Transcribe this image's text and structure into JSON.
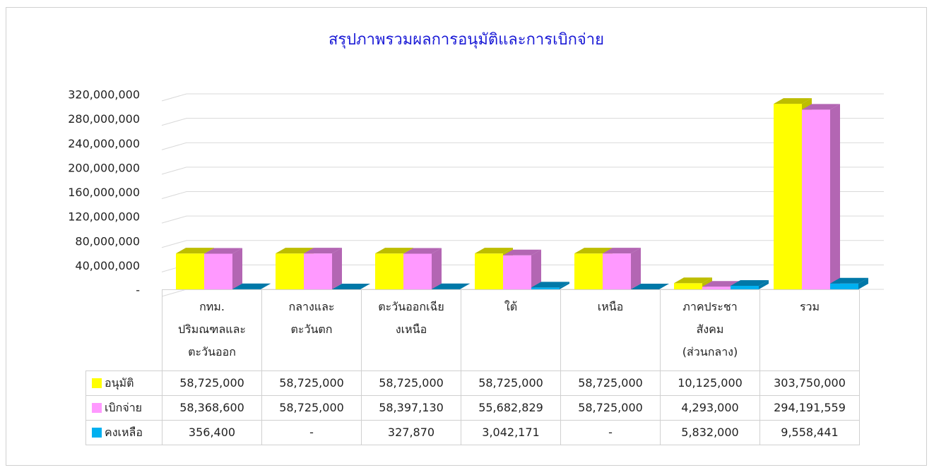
{
  "chart_data": {
    "type": "bar3d",
    "title": "สรุปภาพรวมผลการอนุมัติและการเบิกจ่าย",
    "categories": [
      "กทม.\nปริมณฑลและ\nตะวันออก",
      "กลางและ\nตะวันตก",
      "ตะวันออกเฉีย\nงเหนือ",
      "ใต้",
      "เหนือ",
      "ภาคประชา\nสังคม\n(ส่วนกลาง)",
      "รวม"
    ],
    "series": [
      {
        "name": "อนุมัติ",
        "color": "#ffff00",
        "side": "#bdbd00",
        "values": [
          58725000,
          58725000,
          58725000,
          58725000,
          58725000,
          10125000,
          303750000
        ],
        "value_labels": [
          "58,725,000",
          "58,725,000",
          "58,725,000",
          "58,725,000",
          "58,725,000",
          "10,125,000",
          "303,750,000"
        ]
      },
      {
        "name": "เบิกจ่าย",
        "color": "#ff99ff",
        "side": "#b366b3",
        "values": [
          58368600,
          58725000,
          58397130,
          55682829,
          58725000,
          4293000,
          294191559
        ],
        "value_labels": [
          "58,368,600",
          "58,725,000",
          "58,397,130",
          "55,682,829",
          "58,725,000",
          "4,293,000",
          "294,191,559"
        ]
      },
      {
        "name": "คงเหลือ",
        "color": "#00b0f0",
        "side": "#0078a8",
        "values": [
          356400,
          0,
          327870,
          3042171,
          0,
          5832000,
          9558441
        ],
        "value_labels": [
          "356,400",
          "-",
          "327,870",
          "3,042,171",
          "-",
          "5,832,000",
          "9,558,441"
        ]
      }
    ],
    "ylim": [
      0,
      320000000
    ],
    "yticks": [
      {
        "value": 0,
        "label": "-"
      },
      {
        "value": 40000000,
        "label": "40,000,000"
      },
      {
        "value": 80000000,
        "label": "80,000,000"
      },
      {
        "value": 120000000,
        "label": "120,000,000"
      },
      {
        "value": 160000000,
        "label": "160,000,000"
      },
      {
        "value": 200000000,
        "label": "200,000,000"
      },
      {
        "value": 240000000,
        "label": "240,000,000"
      },
      {
        "value": 280000000,
        "label": "280,000,000"
      },
      {
        "value": 320000000,
        "label": "320,000,000"
      }
    ],
    "grid": true
  }
}
